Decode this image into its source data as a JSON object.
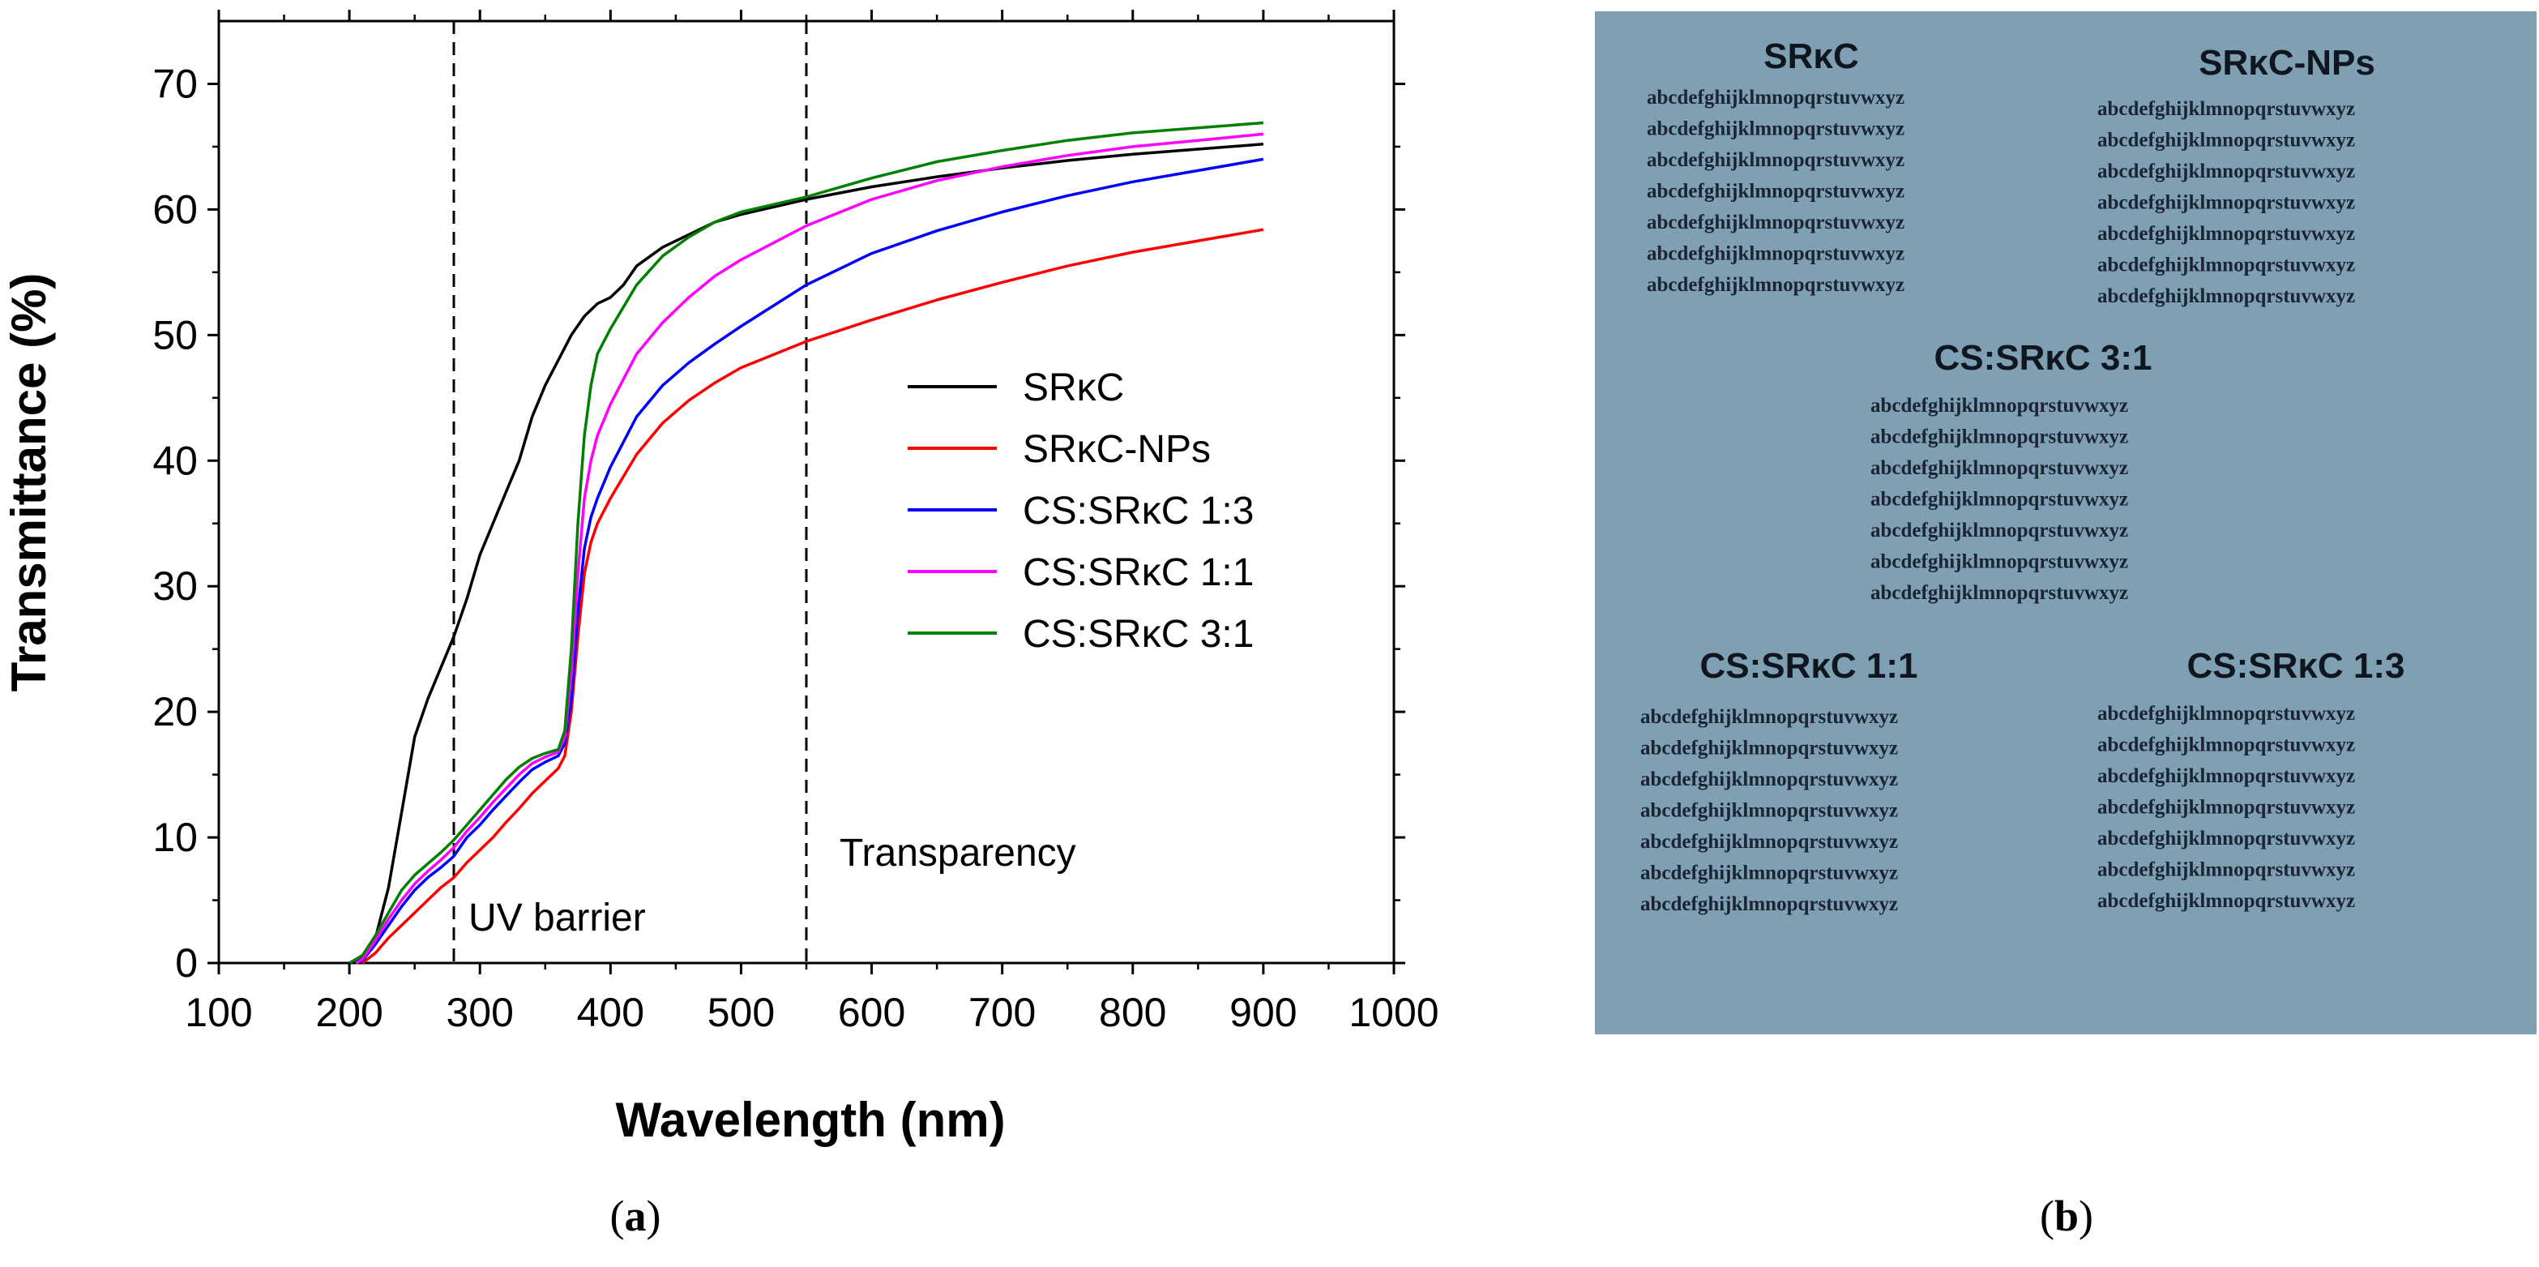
{
  "panel_a": {
    "caption": "a",
    "caption_left": "(",
    "caption_right": ")"
  },
  "panel_b": {
    "caption": "b",
    "caption_left": "(",
    "caption_right": ")",
    "photo": {
      "background": "#7f9fb2",
      "groups": [
        {
          "title": "SRκC",
          "lines": [
            "abcdefghijklmnopqrstuvwxyz",
            "abcdefghijklmnopqrstuvwxyz",
            "abcdefghijklmnopqrstuvwxyz",
            "abcdefghijklmnopqrstuvwxyz",
            "abcdefghijklmnopqrstuvwxyz",
            "abcdefghijklmnopqrstuvwxyz",
            "abcdefghijklmnopqrstuvwxyz"
          ]
        },
        {
          "title": "SRκC-NPs",
          "lines": [
            "abcdefghijklmnopqrstuvwxyz",
            "abcdefghijklmnopqrstuvwxyz",
            "abcdefghijklmnopqrstuvwxyz",
            "abcdefghijklmnopqrstuvwxyz",
            "abcdefghijklmnopqrstuvwxyz",
            "abcdefghijklmnopqrstuvwxyz",
            "abcdefghijklmnopqrstuvwxyz"
          ]
        },
        {
          "title": "CS:SRκC 3:1",
          "lines": [
            "abcdefghijklmnopqrstuvwxyz",
            "abcdefghijklmnopqrstuvwxyz",
            "abcdefghijklmnopqrstuvwxyz",
            "abcdefghijklmnopqrstuvwxyz",
            "abcdefghijklmnopqrstuvwxyz",
            "abcdefghijklmnopqrstuvwxyz",
            "abcdefghijklmnopqrstuvwxyz"
          ]
        },
        {
          "title": "CS:SRκC 1:1",
          "lines": [
            "abcdefghijklmnopqrstuvwxyz",
            "abcdefghijklmnopqrstuvwxyz",
            "abcdefghijklmnopqrstuvwxyz",
            "abcdefghijklmnopqrstuvwxyz",
            "abcdefghijklmnopqrstuvwxyz",
            "abcdefghijklmnopqrstuvwxyz",
            "abcdefghijklmnopqrstuvwxyz"
          ]
        },
        {
          "title": "CS:SRκC 1:3",
          "lines": [
            "abcdefghijklmnopqrstuvwxyz",
            "abcdefghijklmnopqrstuvwxyz",
            "abcdefghijklmnopqrstuvwxyz",
            "abcdefghijklmnopqrstuvwxyz",
            "abcdefghijklmnopqrstuvwxyz",
            "abcdefghijklmnopqrstuvwxyz",
            "abcdefghijklmnopqrstuvwxyz"
          ]
        }
      ]
    }
  },
  "chart_data": {
    "type": "line",
    "title": "",
    "xlabel": "Wavelength (nm)",
    "ylabel": "Transmittance (%)",
    "xlim": [
      100,
      1000
    ],
    "ylim": [
      0,
      75
    ],
    "xticks": [
      100,
      200,
      300,
      400,
      500,
      600,
      700,
      800,
      900,
      1000
    ],
    "yticks": [
      0,
      10,
      20,
      30,
      40,
      50,
      60,
      70
    ],
    "grid": false,
    "legend_position": "center-right",
    "reference_lines": [
      {
        "x": 280,
        "label": "UV barrier",
        "style": "dashed"
      },
      {
        "x": 550,
        "label": "Transparency",
        "style": "dashed"
      }
    ],
    "series": [
      {
        "name": "SRκC",
        "color": "#000000",
        "points": [
          [
            200,
            0
          ],
          [
            210,
            0.5
          ],
          [
            220,
            2
          ],
          [
            230,
            6
          ],
          [
            240,
            12
          ],
          [
            250,
            18
          ],
          [
            260,
            21
          ],
          [
            270,
            23.5
          ],
          [
            280,
            26
          ],
          [
            290,
            29
          ],
          [
            300,
            32.5
          ],
          [
            310,
            35
          ],
          [
            320,
            37.5
          ],
          [
            330,
            40
          ],
          [
            340,
            43.5
          ],
          [
            350,
            46
          ],
          [
            360,
            48
          ],
          [
            370,
            50
          ],
          [
            380,
            51.5
          ],
          [
            390,
            52.5
          ],
          [
            400,
            53
          ],
          [
            410,
            54
          ],
          [
            420,
            55.5
          ],
          [
            440,
            57
          ],
          [
            460,
            58
          ],
          [
            480,
            59
          ],
          [
            500,
            59.6
          ],
          [
            550,
            60.8
          ],
          [
            600,
            61.8
          ],
          [
            650,
            62.6
          ],
          [
            700,
            63.3
          ],
          [
            750,
            63.9
          ],
          [
            800,
            64.4
          ],
          [
            850,
            64.8
          ],
          [
            900,
            65.2
          ]
        ]
      },
      {
        "name": "SRκC-NPs",
        "color": "#ff0000",
        "points": [
          [
            210,
            0
          ],
          [
            220,
            0.8
          ],
          [
            230,
            2
          ],
          [
            240,
            3
          ],
          [
            250,
            4
          ],
          [
            260,
            5
          ],
          [
            270,
            6
          ],
          [
            280,
            6.8
          ],
          [
            290,
            8
          ],
          [
            300,
            9
          ],
          [
            310,
            10
          ],
          [
            320,
            11.2
          ],
          [
            330,
            12.3
          ],
          [
            340,
            13.5
          ],
          [
            350,
            14.5
          ],
          [
            360,
            15.5
          ],
          [
            365,
            16.5
          ],
          [
            370,
            20
          ],
          [
            375,
            26
          ],
          [
            380,
            31
          ],
          [
            385,
            33.5
          ],
          [
            390,
            35
          ],
          [
            400,
            37
          ],
          [
            420,
            40.5
          ],
          [
            440,
            43
          ],
          [
            460,
            44.8
          ],
          [
            480,
            46.2
          ],
          [
            500,
            47.4
          ],
          [
            550,
            49.5
          ],
          [
            600,
            51.2
          ],
          [
            650,
            52.8
          ],
          [
            700,
            54.2
          ],
          [
            750,
            55.5
          ],
          [
            800,
            56.6
          ],
          [
            850,
            57.5
          ],
          [
            900,
            58.4
          ]
        ]
      },
      {
        "name": "CS:SRκC 1:3",
        "color": "#0000ff",
        "points": [
          [
            205,
            0
          ],
          [
            210,
            0.2
          ],
          [
            220,
            1.5
          ],
          [
            230,
            3
          ],
          [
            240,
            4.5
          ],
          [
            250,
            5.8
          ],
          [
            260,
            6.8
          ],
          [
            270,
            7.6
          ],
          [
            280,
            8.5
          ],
          [
            290,
            10
          ],
          [
            300,
            11
          ],
          [
            310,
            12.2
          ],
          [
            320,
            13.3
          ],
          [
            330,
            14.4
          ],
          [
            340,
            15.4
          ],
          [
            350,
            16
          ],
          [
            360,
            16.5
          ],
          [
            365,
            17.5
          ],
          [
            370,
            21
          ],
          [
            375,
            28
          ],
          [
            380,
            33
          ],
          [
            385,
            35.5
          ],
          [
            390,
            37
          ],
          [
            400,
            39.5
          ],
          [
            420,
            43.5
          ],
          [
            440,
            46
          ],
          [
            460,
            47.8
          ],
          [
            480,
            49.3
          ],
          [
            500,
            50.7
          ],
          [
            550,
            54
          ],
          [
            600,
            56.5
          ],
          [
            650,
            58.3
          ],
          [
            700,
            59.8
          ],
          [
            750,
            61.1
          ],
          [
            800,
            62.2
          ],
          [
            850,
            63.1
          ],
          [
            900,
            64
          ]
        ]
      },
      {
        "name": "CS:SRκC 1:1",
        "color": "#ff00ff",
        "points": [
          [
            205,
            0
          ],
          [
            210,
            0.3
          ],
          [
            220,
            1.8
          ],
          [
            230,
            3.5
          ],
          [
            240,
            5
          ],
          [
            250,
            6.3
          ],
          [
            260,
            7.3
          ],
          [
            270,
            8.2
          ],
          [
            280,
            9.2
          ],
          [
            290,
            10.5
          ],
          [
            300,
            11.6
          ],
          [
            310,
            12.8
          ],
          [
            320,
            13.9
          ],
          [
            330,
            15
          ],
          [
            340,
            15.9
          ],
          [
            350,
            16.4
          ],
          [
            360,
            16.8
          ],
          [
            365,
            18
          ],
          [
            370,
            23
          ],
          [
            375,
            31
          ],
          [
            380,
            37
          ],
          [
            385,
            40
          ],
          [
            390,
            42
          ],
          [
            400,
            44.5
          ],
          [
            420,
            48.5
          ],
          [
            440,
            51
          ],
          [
            460,
            53
          ],
          [
            480,
            54.7
          ],
          [
            500,
            56
          ],
          [
            550,
            58.7
          ],
          [
            600,
            60.8
          ],
          [
            650,
            62.3
          ],
          [
            700,
            63.4
          ],
          [
            750,
            64.3
          ],
          [
            800,
            65
          ],
          [
            850,
            65.5
          ],
          [
            900,
            66
          ]
        ]
      },
      {
        "name": "CS:SRκC 3:1",
        "color": "#008000",
        "points": [
          [
            200,
            0
          ],
          [
            210,
            0.6
          ],
          [
            220,
            2.2
          ],
          [
            230,
            4
          ],
          [
            240,
            5.8
          ],
          [
            250,
            7
          ],
          [
            260,
            7.9
          ],
          [
            270,
            8.8
          ],
          [
            280,
            9.8
          ],
          [
            290,
            11
          ],
          [
            300,
            12.2
          ],
          [
            310,
            13.4
          ],
          [
            320,
            14.6
          ],
          [
            330,
            15.6
          ],
          [
            340,
            16.3
          ],
          [
            350,
            16.7
          ],
          [
            360,
            17
          ],
          [
            365,
            18.5
          ],
          [
            370,
            25
          ],
          [
            375,
            35
          ],
          [
            380,
            42
          ],
          [
            385,
            46
          ],
          [
            390,
            48.5
          ],
          [
            400,
            50.5
          ],
          [
            420,
            54
          ],
          [
            440,
            56.3
          ],
          [
            460,
            57.8
          ],
          [
            480,
            59
          ],
          [
            500,
            59.8
          ],
          [
            550,
            61
          ],
          [
            600,
            62.5
          ],
          [
            650,
            63.8
          ],
          [
            700,
            64.7
          ],
          [
            750,
            65.5
          ],
          [
            800,
            66.1
          ],
          [
            850,
            66.5
          ],
          [
            900,
            66.9
          ]
        ]
      }
    ]
  }
}
